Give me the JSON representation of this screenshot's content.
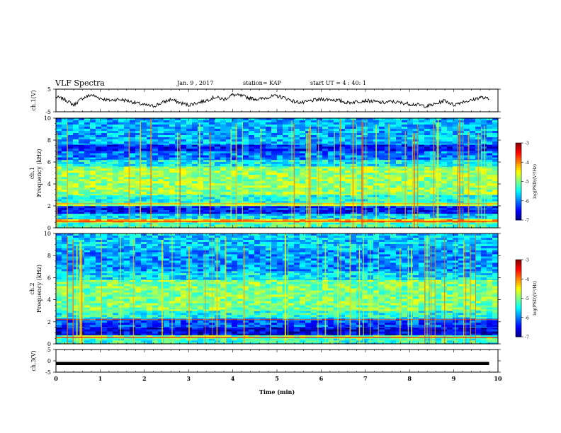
{
  "header": {
    "title": "VLF Spectra",
    "date": "Jan. 9 , 2017",
    "station": "station= KAP",
    "start": "start UT =  4 : 40: 1"
  },
  "chart_data": [
    {
      "type": "line",
      "name": "ch1-waveform",
      "ylabel": "ch.1(V)",
      "ylim": [
        -5,
        5
      ],
      "yticks": [
        "5",
        "-5"
      ],
      "xlim": [
        0,
        10
      ],
      "x": [
        0.0,
        0.2,
        0.4,
        0.6,
        0.8,
        1.0,
        1.2,
        1.4,
        1.6,
        1.8,
        2.0,
        2.2,
        2.4,
        2.6,
        2.8,
        3.0,
        3.2,
        3.4,
        3.6,
        3.8,
        4.0,
        4.2,
        4.4,
        4.6,
        4.8,
        5.0,
        5.2,
        5.4,
        5.6,
        5.8,
        6.0,
        6.2,
        6.4,
        6.6,
        6.8,
        7.0,
        7.2,
        7.4,
        7.6,
        7.8,
        8.0,
        8.2,
        8.4,
        8.6,
        8.8,
        9.0,
        9.2,
        9.4,
        9.6,
        9.8
      ],
      "y": [
        1.5,
        0.5,
        -2.0,
        1.0,
        2.5,
        1.0,
        0.0,
        0.5,
        0.0,
        -1.0,
        -2.0,
        -2.5,
        -1.0,
        0.5,
        -1.0,
        -2.0,
        -1.0,
        0.0,
        1.5,
        0.5,
        2.5,
        2.0,
        1.0,
        0.5,
        1.5,
        2.0,
        1.0,
        -0.5,
        -1.0,
        0.0,
        0.5,
        0.5,
        0.0,
        -1.0,
        -0.5,
        0.0,
        -0.5,
        -1.0,
        -0.5,
        -1.0,
        -1.5,
        -2.0,
        -2.5,
        -1.5,
        0.0,
        -2.0,
        -0.5,
        0.0,
        1.5,
        0.5
      ]
    },
    {
      "type": "heatmap",
      "name": "ch1-spectrogram",
      "ylabel": "ch.1\nFrequency (kHz)",
      "ylim": [
        0,
        10
      ],
      "yticks": [
        "0",
        "2",
        "4",
        "6",
        "8",
        "10"
      ],
      "xlim": [
        0,
        10
      ],
      "colorbar": {
        "label": "log(PSD)(V²/Hz)",
        "range": [
          -7,
          -3
        ],
        "ticks": [
          "-3",
          "-4",
          "-5",
          "-6",
          "-7"
        ]
      },
      "band_levels_log_psd": [
        {
          "f": [
            0.0,
            0.5
          ],
          "v": -5.2
        },
        {
          "f": [
            0.5,
            0.8
          ],
          "v": -4.3
        },
        {
          "f": [
            0.8,
            1.3
          ],
          "v": -5.6
        },
        {
          "f": [
            1.3,
            2.0
          ],
          "v": -6.4
        },
        {
          "f": [
            2.0,
            2.3
          ],
          "v": -4.8
        },
        {
          "f": [
            2.3,
            3.0
          ],
          "v": -5.4
        },
        {
          "f": [
            3.0,
            5.6
          ],
          "v": -4.9
        },
        {
          "f": [
            5.6,
            6.2
          ],
          "v": -5.5
        },
        {
          "f": [
            6.2,
            7.0
          ],
          "v": -6.0
        },
        {
          "f": [
            7.0,
            7.6
          ],
          "v": -6.4
        },
        {
          "f": [
            7.6,
            10.0
          ],
          "v": -5.8
        }
      ]
    },
    {
      "type": "heatmap",
      "name": "ch2-spectrogram",
      "ylabel": "ch.2\nFrequency (kHz)",
      "ylim": [
        0,
        10
      ],
      "yticks": [
        "0",
        "2",
        "4",
        "6",
        "8",
        "10"
      ],
      "xlim": [
        0,
        10
      ],
      "colorbar": {
        "label": "log(PSD)(V²/Hz)",
        "range": [
          -7,
          -3
        ],
        "ticks": [
          "-3",
          "-4",
          "-5",
          "-6",
          "-7"
        ]
      },
      "band_levels_log_psd": [
        {
          "f": [
            0.0,
            0.5
          ],
          "v": -5.3
        },
        {
          "f": [
            0.5,
            0.8
          ],
          "v": -5.0
        },
        {
          "f": [
            0.8,
            1.5
          ],
          "v": -6.6
        },
        {
          "f": [
            1.5,
            2.3
          ],
          "v": -6.2
        },
        {
          "f": [
            2.3,
            3.0
          ],
          "v": -5.4
        },
        {
          "f": [
            3.0,
            5.8
          ],
          "v": -5.0
        },
        {
          "f": [
            5.8,
            6.6
          ],
          "v": -5.6
        },
        {
          "f": [
            6.6,
            8.5
          ],
          "v": -5.9
        },
        {
          "f": [
            8.5,
            10.0
          ],
          "v": -5.7
        }
      ]
    },
    {
      "type": "line",
      "name": "ch3-waveform",
      "ylabel": "ch.3(V)",
      "ylim": [
        -5,
        5
      ],
      "yticks": [
        "5",
        "0",
        "-5"
      ],
      "xlim": [
        0,
        10
      ],
      "xlabel": "Time (min)",
      "xticks": [
        "0",
        "1",
        "2",
        "3",
        "4",
        "5",
        "6",
        "7",
        "8",
        "9",
        "10"
      ],
      "x": [
        0.0,
        9.8
      ],
      "y": [
        -1.2,
        -1.2
      ]
    }
  ]
}
